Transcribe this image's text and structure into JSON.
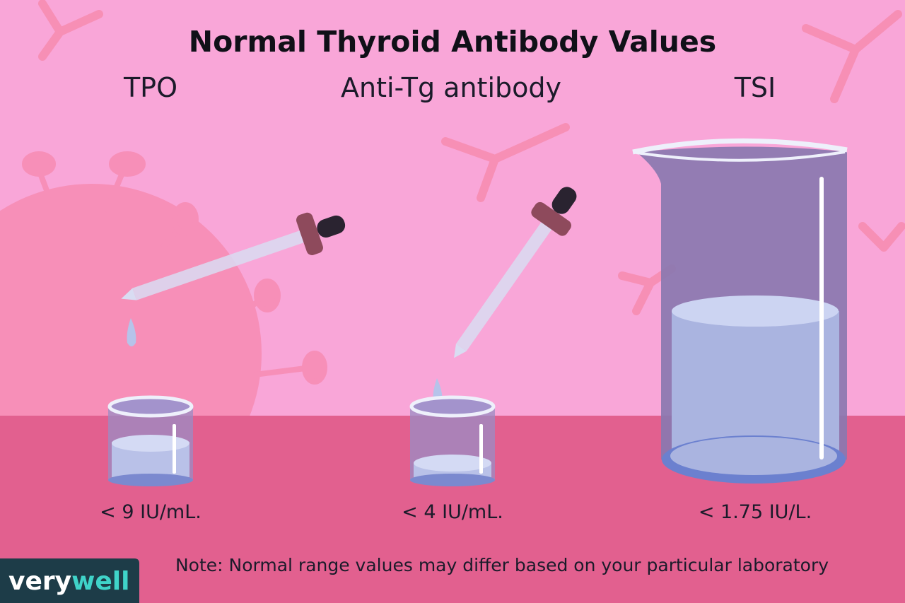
{
  "title": "Normal Thyroid Antibody Values",
  "tests": [
    {
      "label": "TPO",
      "value": "< 9 IU/mL."
    },
    {
      "label": "Anti-Tg antibody",
      "value": "< 4 IU/mL."
    },
    {
      "label": "TSI",
      "value": "< 1.75 IU/L."
    }
  ],
  "note": "Note: Normal range values may differ based on your particular laboratory",
  "brand": {
    "first": "very",
    "second": "well"
  }
}
